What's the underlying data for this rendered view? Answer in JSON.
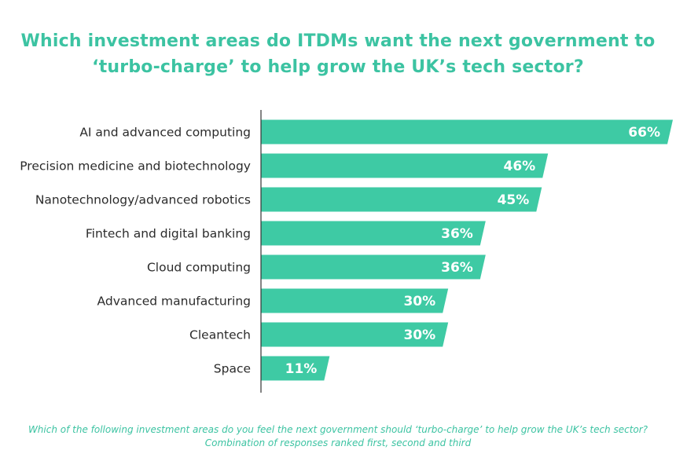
{
  "title_lines": [
    "Which investment areas do ITDMs want the next government to",
    "‘turbo-charge’ to help grow the UK’s tech sector?"
  ],
  "footnote": {
    "question": "Which of the following investment areas do you feel the next government should ‘turbo-charge’ to help grow the UK’s tech sector?",
    "note": "Combination of responses ranked first, second and third"
  },
  "colors": {
    "accent": "#3ecaa4",
    "title": "#3cc3a2",
    "axis": "#333333"
  },
  "chart_data": {
    "type": "bar",
    "orientation": "horizontal",
    "title": "Which investment areas do ITDMs want the next government to ‘turbo-charge’ to help grow the UK’s tech sector?",
    "categories": [
      "AI and advanced computing",
      "Precision medicine and biotechnology",
      "Nanotechnology/advanced robotics",
      "Fintech and digital banking",
      "Cloud computing",
      "Advanced manufacturing",
      "Cleantech",
      "Space"
    ],
    "values": [
      66,
      46,
      45,
      36,
      36,
      30,
      30,
      11
    ],
    "value_labels": [
      "66%",
      "46%",
      "45%",
      "36%",
      "36%",
      "30%",
      "30%",
      "11%"
    ],
    "unit": "%",
    "xlim": [
      0,
      66
    ],
    "grid": false
  }
}
